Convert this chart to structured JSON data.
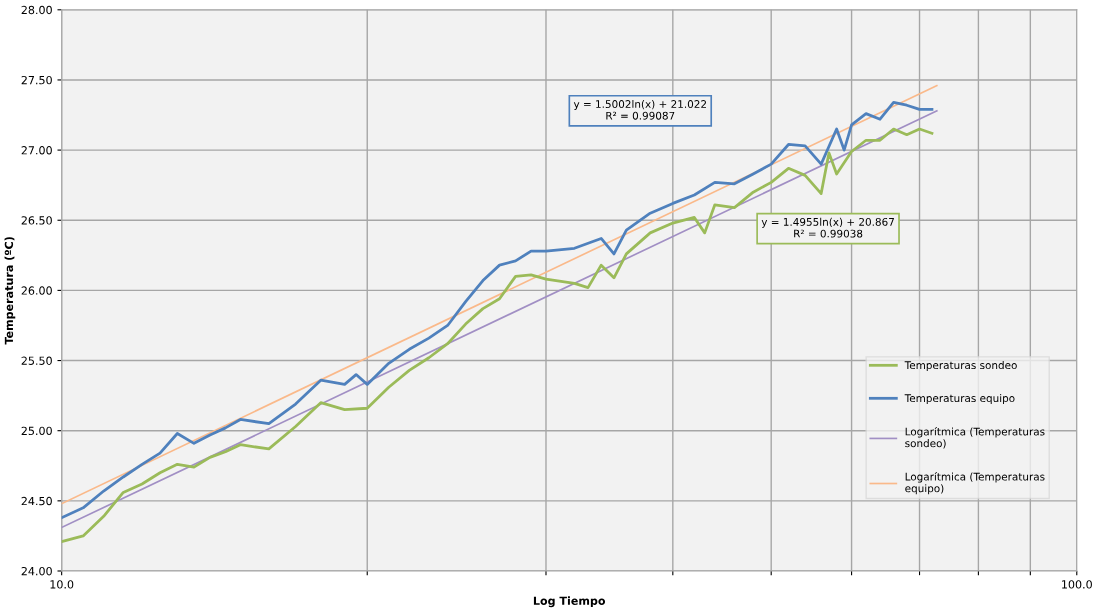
{
  "chart_data": {
    "type": "line",
    "xlabel": "Log Tiempo",
    "ylabel": "Temperatura (ºC)",
    "log": "x",
    "xlim": [
      10,
      100
    ],
    "ylim": [
      24,
      28
    ],
    "xticks": [
      {
        "value": 10,
        "label": "10.0"
      },
      {
        "value": 20,
        "label": null
      },
      {
        "value": 30,
        "label": null
      },
      {
        "value": 40,
        "label": null
      },
      {
        "value": 50,
        "label": null
      },
      {
        "value": 60,
        "label": null
      },
      {
        "value": 70,
        "label": null
      },
      {
        "value": 80,
        "label": null
      },
      {
        "value": 90,
        "label": null
      },
      {
        "value": 100,
        "label": "100.0"
      }
    ],
    "yticks": [
      {
        "value": 24,
        "label": "24.00"
      },
      {
        "value": 24.5,
        "label": "24.50"
      },
      {
        "value": 25,
        "label": "25.00"
      },
      {
        "value": 25.5,
        "label": "25.50"
      },
      {
        "value": 26,
        "label": "26.00"
      },
      {
        "value": 26.5,
        "label": "26.50"
      },
      {
        "value": 27,
        "label": "27.00"
      },
      {
        "value": 27.5,
        "label": "27.50"
      },
      {
        "value": 28,
        "label": "28.00"
      }
    ],
    "grid": true,
    "legend": "bottom right",
    "marker": "none",
    "line_style": "solid",
    "annotations": [
      "y = 1.5002ln(x) + 21.022\nR² = 0.99087",
      "y = 1.4955ln(x) + 20.867\nR² = 0.99038"
    ],
    "series": [
      {
        "name": "Temperaturas sondeo",
        "color": "#9bbb59",
        "x": [
          10,
          10.5,
          11,
          11.5,
          12,
          12.5,
          13,
          13.5,
          14,
          14.5,
          15,
          16,
          17,
          18,
          19,
          20,
          21,
          22,
          23,
          24,
          25,
          26,
          27,
          28,
          29,
          30,
          32,
          33,
          34,
          35,
          36,
          38,
          40,
          42,
          43,
          44,
          46,
          48,
          50,
          52,
          54,
          56,
          57,
          58,
          60,
          62,
          64,
          66,
          68,
          70,
          72
        ],
        "values": [
          24.21,
          24.25,
          24.39,
          24.56,
          24.62,
          24.7,
          24.76,
          24.74,
          24.81,
          24.85,
          24.9,
          24.87,
          25.03,
          25.2,
          25.15,
          25.16,
          25.31,
          25.43,
          25.52,
          25.62,
          25.76,
          25.87,
          25.94,
          26.1,
          26.11,
          26.08,
          26.05,
          26.02,
          26.18,
          26.09,
          26.26,
          26.41,
          26.48,
          26.52,
          26.41,
          26.61,
          26.59,
          26.7,
          26.77,
          26.87,
          26.82,
          26.69,
          26.98,
          26.83,
          26.99,
          27.07,
          27.07,
          27.15,
          27.11,
          27.15,
          27.12
        ]
      },
      {
        "name": "Temperaturas equipo",
        "color": "#4f81bd",
        "x": [
          10,
          10.5,
          11,
          11.5,
          12,
          12.5,
          13,
          13.5,
          14,
          14.5,
          15,
          16,
          17,
          18,
          19,
          19.5,
          20,
          21,
          22,
          23,
          24,
          25,
          26,
          27,
          28,
          29,
          30,
          32,
          34,
          35,
          36,
          38,
          40,
          42,
          44,
          46,
          48,
          50,
          52,
          54,
          56,
          58,
          59,
          60,
          62,
          64,
          66,
          68,
          70,
          72
        ],
        "values": [
          24.38,
          24.45,
          24.57,
          24.67,
          24.76,
          24.84,
          24.98,
          24.91,
          24.97,
          25.02,
          25.08,
          25.05,
          25.19,
          25.36,
          25.33,
          25.4,
          25.33,
          25.48,
          25.58,
          25.66,
          25.75,
          25.92,
          26.07,
          26.18,
          26.21,
          26.28,
          26.28,
          26.3,
          26.37,
          26.26,
          26.43,
          26.55,
          26.62,
          26.68,
          26.77,
          26.76,
          26.83,
          26.9,
          27.04,
          27.03,
          26.9,
          27.15,
          27.0,
          27.18,
          27.26,
          27.22,
          27.34,
          27.32,
          27.29,
          27.29
        ]
      },
      {
        "name": "Logarítmica (Temperaturas\nsondeo)",
        "color": "#a18fc4",
        "x": [
          10,
          72.8
        ],
        "values": [
          24.31,
          27.28
        ]
      },
      {
        "name": "Logarítmica (Temperaturas\nequipo)",
        "color": "#fab98a",
        "x": [
          10,
          72.8
        ],
        "values": [
          24.48,
          27.46
        ]
      }
    ]
  }
}
